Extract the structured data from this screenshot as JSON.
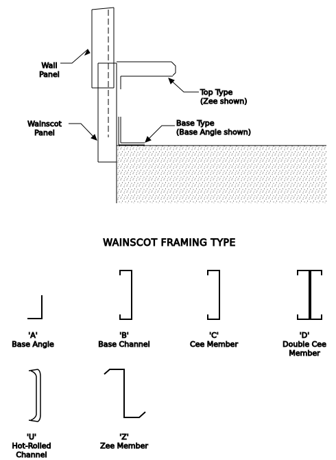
{
  "detail": {
    "wall_panel": [
      "Wall",
      "Panel"
    ],
    "top_type": [
      "Top Type",
      "(Zee shown)"
    ],
    "wainscot_panel": [
      "Wainscot",
      "Panel"
    ],
    "base_type": [
      "Base Type",
      "(Base Angle shown)"
    ]
  },
  "section_title": "WAINSCOT FRAMING TYPE",
  "members": [
    {
      "code": "'A'",
      "name": [
        "Base Angle"
      ]
    },
    {
      "code": "'B'",
      "name": [
        "Base Channel"
      ]
    },
    {
      "code": "'C'",
      "name": [
        "Cee Member"
      ]
    },
    {
      "code": "'D'",
      "name": [
        "Double Cee",
        "Member"
      ]
    },
    {
      "code": "'U'",
      "name": [
        "Hot-Rolled",
        "Channel"
      ]
    },
    {
      "code": "'Z'",
      "name": [
        "Zee Member"
      ]
    }
  ]
}
